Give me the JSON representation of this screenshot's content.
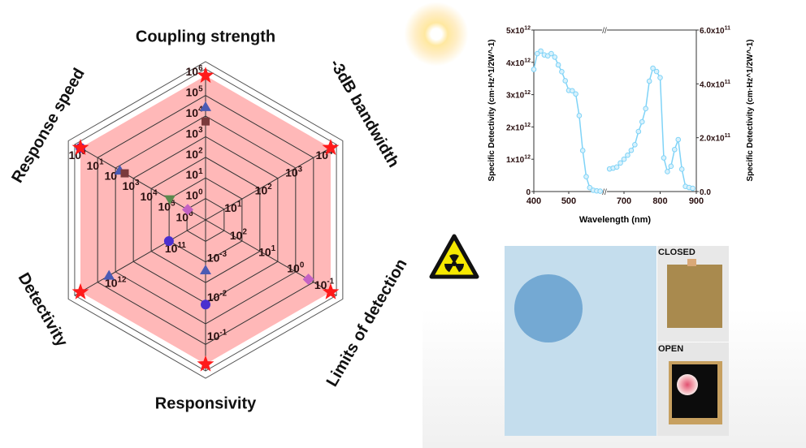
{
  "radar": {
    "chart_data": {
      "type": "radar",
      "axes": [
        {
          "label": "Coupling strength",
          "ticks": [
            "10^0",
            "10^1",
            "10^2",
            "10^3",
            "10^4",
            "10^5",
            "10^6"
          ],
          "scale": "log"
        },
        {
          "label": "-3dB bandwidth",
          "ticks": [
            "10^1",
            "10^2",
            "10^3",
            "10^4"
          ],
          "scale": "log"
        },
        {
          "label": "Limits of detection",
          "ticks": [
            "10^2",
            "10^1",
            "10^0",
            "10^-1"
          ],
          "scale": "log-reversed"
        },
        {
          "label": "Responsivity",
          "ticks": [
            "10^-3",
            "10^-2",
            "10^-1"
          ],
          "scale": "log"
        },
        {
          "label": "Detectivity",
          "ticks": [
            "10^11",
            "10^12"
          ],
          "scale": "log"
        },
        {
          "label": "Response speed",
          "ticks": [
            "10^6",
            "10^5",
            "10^4",
            "10^3",
            "10^2",
            "10^1",
            "10^0"
          ],
          "scale": "log-reversed"
        }
      ],
      "series": [
        {
          "marker": "star",
          "color": "#ff1a1a",
          "fill": "#ffb8b8",
          "values": [
            1000000.0,
            10000.0,
            0.1,
            0.5,
            3000000000000.0,
            1
          ]
        },
        {
          "marker": "triangle",
          "color": "#4b5bb4",
          "values": [
            30000.0,
            null,
            null,
            0.002,
            1000000000000.0,
            160
          ]
        },
        {
          "marker": "square",
          "color": "#7a3a3c",
          "values": [
            6000.0,
            null,
            null,
            null,
            null,
            300
          ]
        },
        {
          "marker": "triangle-down",
          "color": "#5b8a4e",
          "values": [
            null,
            null,
            null,
            null,
            null,
            100000.0
          ]
        },
        {
          "marker": "diamond",
          "color": "#c462c4",
          "values": [
            null,
            null,
            0.6,
            null,
            null,
            1000000.0
          ]
        },
        {
          "marker": "circle",
          "color": "#4a2fcf",
          "values": [
            null,
            null,
            null,
            0.015,
            100000000000.0,
            1
          ]
        }
      ]
    }
  },
  "spectrum": {
    "chart_data": {
      "type": "line",
      "xlabel": "Wavelength (nm)",
      "ylabel_left": "Specific Detectivity (cm·Hz^1/2W^-1)",
      "ylabel_right": "Specific Detectivity (cm·Hz^1/2W^-1)",
      "x_ticks": [
        "400",
        "500",
        "700",
        "800",
        "900"
      ],
      "x_break": "//",
      "y_left_ticks": [
        "0",
        "1x10^12",
        "2x10^12",
        "3x10^12",
        "4x10^12",
        "5x10^12"
      ],
      "y_right_ticks": [
        "0.0",
        "2.0x10^11",
        "4.0x10^11",
        "6.0x10^11"
      ],
      "y_left_lim": [
        0,
        5000000000000.0
      ],
      "y_right_lim": [
        0,
        600000000000.0
      ],
      "color": "#7fd3f7",
      "series": [
        {
          "axis": "left",
          "x": [
            400,
            410,
            420,
            430,
            440,
            450,
            460,
            470,
            480,
            490,
            500,
            510,
            520,
            530,
            540,
            550,
            560,
            570,
            580,
            590
          ],
          "y": [
            3780000000000.0,
            4270000000000.0,
            4350000000000.0,
            4230000000000.0,
            4200000000000.0,
            4270000000000.0,
            4160000000000.0,
            3920000000000.0,
            3710000000000.0,
            3430000000000.0,
            3130000000000.0,
            3120000000000.0,
            3020000000000.0,
            2350000000000.0,
            1270000000000.0,
            460000000000.0,
            120000000000.0,
            40000000000.0,
            20000000000.0,
            10000000000.0
          ]
        },
        {
          "axis": "right",
          "x": [
            660,
            670,
            680,
            690,
            700,
            710,
            720,
            730,
            740,
            750,
            760,
            770,
            780,
            790,
            800,
            810,
            820,
            830,
            840,
            850,
            860,
            870,
            880,
            890
          ],
          "y": [
            84000000000.0,
            87000000000.0,
            91000000000.0,
            106000000000.0,
            120000000000.0,
            135000000000.0,
            153000000000.0,
            174000000000.0,
            223000000000.0,
            259000000000.0,
            308000000000.0,
            410000000000.0,
            458000000000.0,
            446000000000.0,
            423000000000.0,
            125000000000.0,
            74000000000.0,
            94000000000.0,
            156000000000.0,
            193000000000.0,
            83000000000.0,
            19000000000.0,
            15000000000.0,
            12000000000.0
          ]
        }
      ]
    }
  },
  "photos": {
    "closed_label": "CLOSED",
    "open_label": "OPEN"
  },
  "icons": {
    "radiation": "radiation-warning-icon",
    "light": "sun-glow-icon"
  }
}
